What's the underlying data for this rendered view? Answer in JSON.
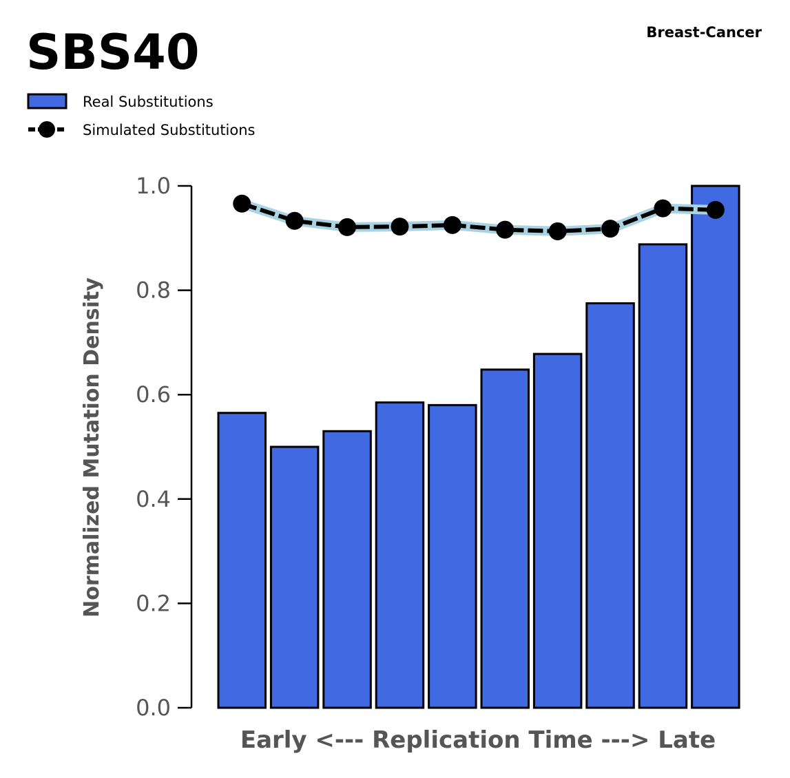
{
  "chart_data": {
    "type": "bar",
    "title": "SBS40",
    "subtitle": "Breast-Cancer",
    "xlabel": "Early <--- Replication Time ---> Late",
    "ylabel": "Normalized Mutation Density",
    "ylim": [
      0,
      1.0
    ],
    "yticks": [
      0.0,
      0.2,
      0.4,
      0.6,
      0.8,
      1.0
    ],
    "ytick_labels": [
      "0.0",
      "0.2",
      "0.4",
      "0.6",
      "0.8",
      "1.0"
    ],
    "legend_placement": "top-left",
    "grid": false,
    "series": [
      {
        "name": "Real Substitutions",
        "kind": "bar",
        "color": "#4169e1",
        "edge_color": "#000000",
        "values": [
          0.565,
          0.5,
          0.53,
          0.585,
          0.58,
          0.648,
          0.678,
          0.775,
          0.888,
          1.0
        ]
      },
      {
        "name": "Simulated Substitutions",
        "kind": "line",
        "color": "#000000",
        "band_color": "#a9d3e3",
        "values": [
          0.966,
          0.933,
          0.921,
          0.922,
          0.925,
          0.916,
          0.913,
          0.918,
          0.957,
          0.954
        ]
      }
    ]
  }
}
